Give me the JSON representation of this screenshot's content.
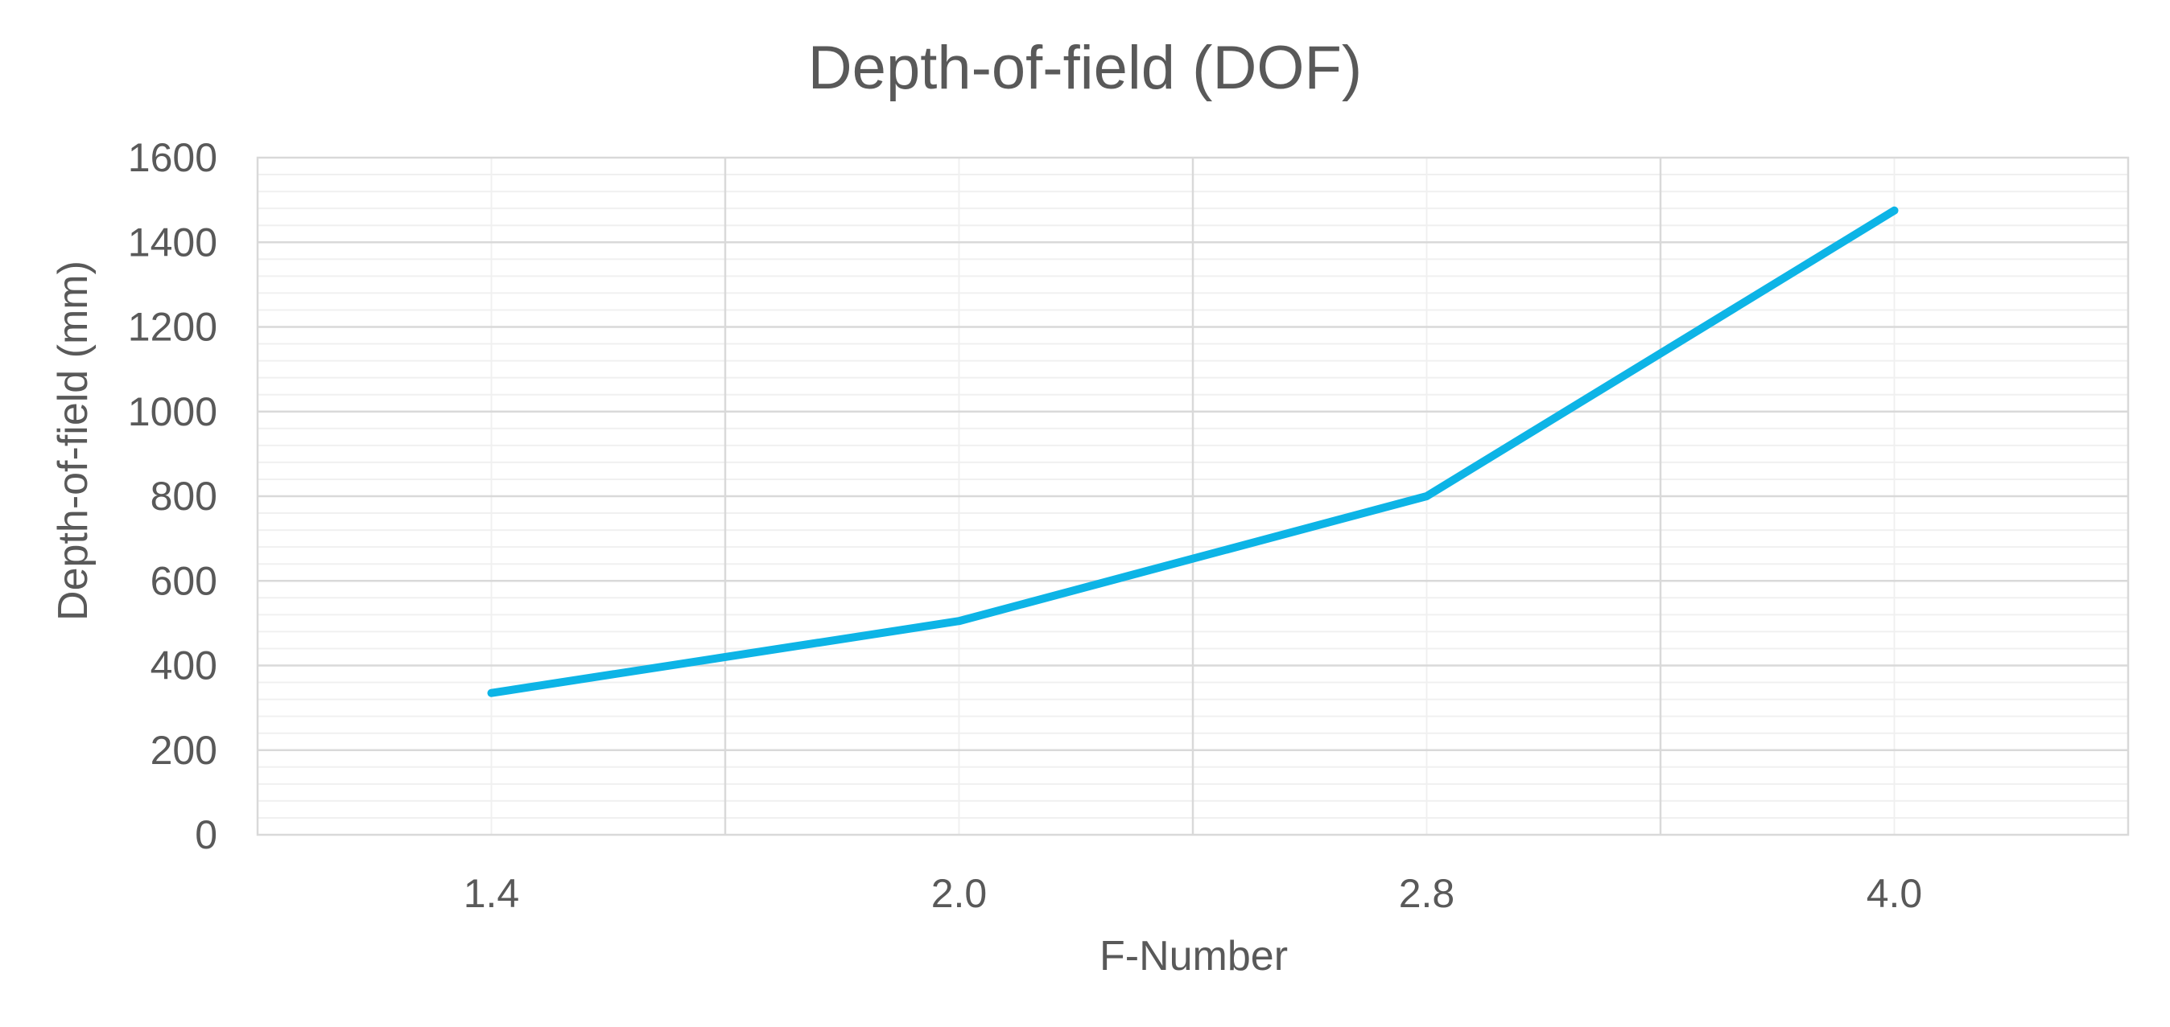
{
  "chart_data": {
    "type": "line",
    "title": "Depth-of-field (DOF)",
    "xlabel": "F-Number",
    "ylabel": "Depth-of-field (mm)",
    "categories": [
      "1.4",
      "2.0",
      "2.8",
      "4.0"
    ],
    "series": [
      {
        "values": [
          335,
          505,
          800,
          1475
        ],
        "color": "#0db4e6"
      }
    ],
    "ylim": [
      0,
      1600
    ],
    "ytick_step": 200,
    "ytick_labels": [
      "0",
      "200",
      "400",
      "600",
      "800",
      "1000",
      "1200",
      "1400",
      "1600"
    ],
    "grid": true,
    "legend": "none"
  }
}
